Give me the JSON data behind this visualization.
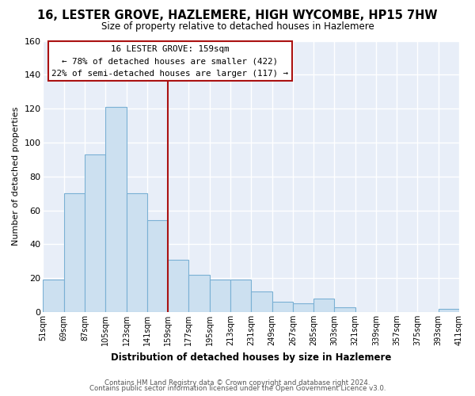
{
  "title": "16, LESTER GROVE, HAZLEMERE, HIGH WYCOMBE, HP15 7HW",
  "subtitle": "Size of property relative to detached houses in Hazlemere",
  "xlabel": "Distribution of detached houses by size in Hazlemere",
  "ylabel": "Number of detached properties",
  "bar_values": [
    19,
    70,
    93,
    121,
    70,
    54,
    31,
    22,
    19,
    19,
    12,
    6,
    5,
    8,
    3,
    0,
    0,
    0,
    0,
    2
  ],
  "bin_labels": [
    "51sqm",
    "69sqm",
    "87sqm",
    "105sqm",
    "123sqm",
    "141sqm",
    "159sqm",
    "177sqm",
    "195sqm",
    "213sqm",
    "231sqm",
    "249sqm",
    "267sqm",
    "285sqm",
    "303sqm",
    "321sqm",
    "339sqm",
    "357sqm",
    "375sqm",
    "393sqm",
    "411sqm"
  ],
  "bar_color": "#cce0f0",
  "bar_edge_color": "#7ab0d4",
  "vline_color": "#aa1111",
  "annotation_title": "16 LESTER GROVE: 159sqm",
  "annotation_line1": "← 78% of detached houses are smaller (422)",
  "annotation_line2": "22% of semi-detached houses are larger (117) →",
  "ylim": [
    0,
    160
  ],
  "yticks": [
    0,
    20,
    40,
    60,
    80,
    100,
    120,
    140,
    160
  ],
  "footer1": "Contains HM Land Registry data © Crown copyright and database right 2024.",
  "footer2": "Contains public sector information licensed under the Open Government Licence v3.0.",
  "bg_color": "#ffffff",
  "plot_bg_color": "#e8eef8",
  "grid_color": "#ffffff"
}
